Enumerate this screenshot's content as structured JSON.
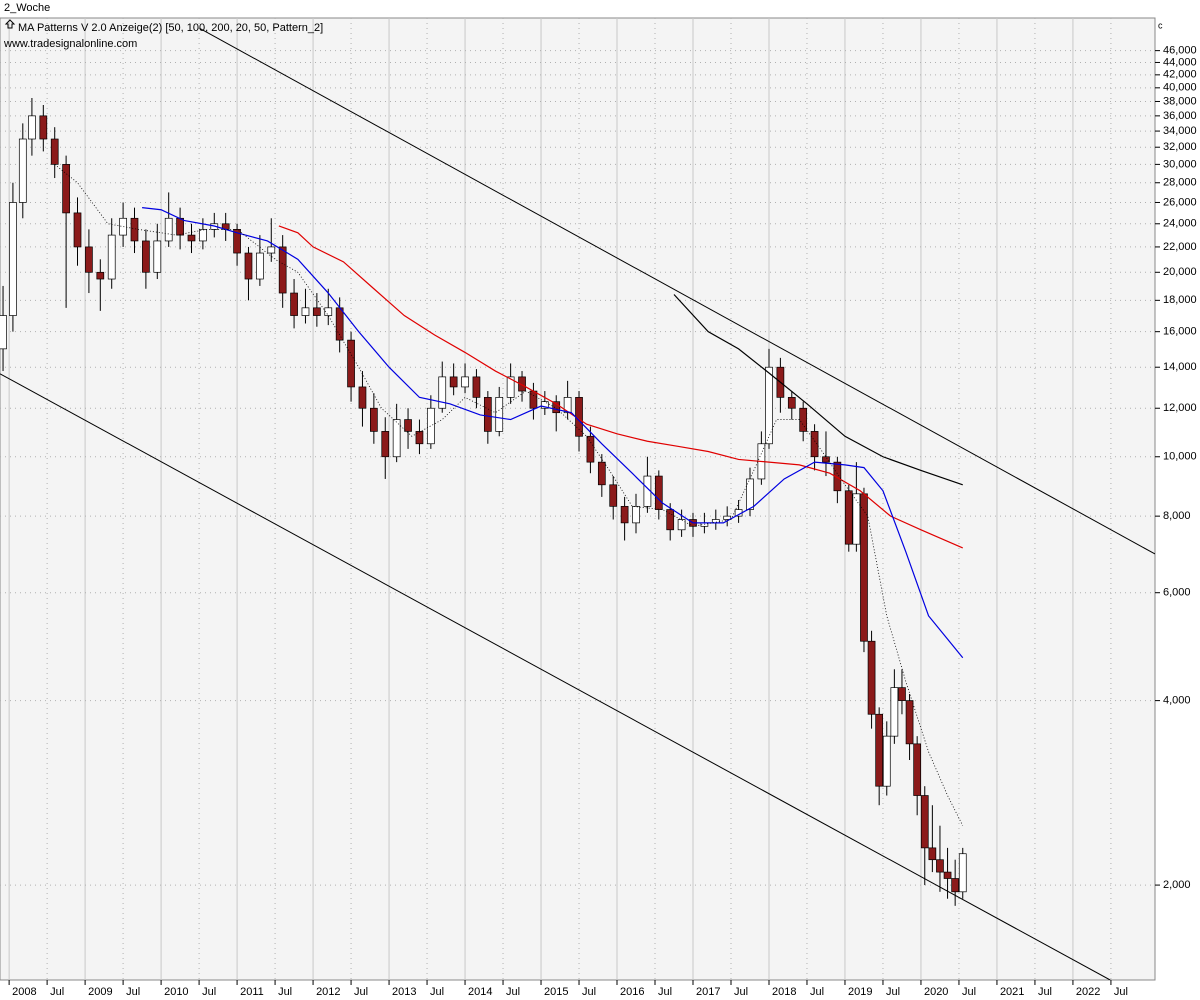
{
  "chart_data": {
    "type": "candlestick",
    "title": "2_Woche",
    "subtitle": "MA Patterns V 2.0 Anzeige(2)  [50, 100, 200, 20, 50, Pattern_2]",
    "source": "www.tradesignalonline.com",
    "axis_label": "c",
    "log_scale": true,
    "grid": true,
    "xlim": [
      2007.88,
      2023.08
    ],
    "ylim": [
      1400,
      52000
    ],
    "xticks": [
      2008,
      {
        "value": 2008.5,
        "label": "Jul"
      },
      2009,
      {
        "value": 2009.5,
        "label": "Jul"
      },
      2010,
      {
        "value": 2010.5,
        "label": "Jul"
      },
      2011,
      {
        "value": 2011.5,
        "label": "Jul"
      },
      2012,
      {
        "value": 2012.5,
        "label": "Jul"
      },
      2013,
      {
        "value": 2013.5,
        "label": "Jul"
      },
      2014,
      {
        "value": 2014.5,
        "label": "Jul"
      },
      2015,
      {
        "value": 2015.5,
        "label": "Jul"
      },
      2016,
      {
        "value": 2016.5,
        "label": "Jul"
      },
      2017,
      {
        "value": 2017.5,
        "label": "Jul"
      },
      2018,
      {
        "value": 2018.5,
        "label": "Jul"
      },
      2019,
      {
        "value": 2019.5,
        "label": "Jul"
      },
      2020,
      {
        "value": 2020.5,
        "label": "Jul"
      },
      2021,
      {
        "value": 2021.5,
        "label": "Jul"
      },
      2022,
      {
        "value": 2022.5,
        "label": "Jul"
      }
    ],
    "yticks": [
      {
        "value": 2000,
        "label": "2,000"
      },
      {
        "value": 4000,
        "label": "4,000"
      },
      {
        "value": 6000,
        "label": "6,000"
      },
      {
        "value": 8000,
        "label": "8,000"
      },
      {
        "value": 10000,
        "label": "10,000"
      },
      {
        "value": 12000,
        "label": "12,000"
      },
      {
        "value": 14000,
        "label": "14,000"
      },
      {
        "value": 16000,
        "label": "16,000"
      },
      {
        "value": 18000,
        "label": "18,000"
      },
      {
        "value": 20000,
        "label": "20,000"
      },
      {
        "value": 22000,
        "label": "22,000"
      },
      {
        "value": 24000,
        "label": "24,000"
      },
      {
        "value": 26000,
        "label": "26,000"
      },
      {
        "value": 28000,
        "label": "28,000"
      },
      {
        "value": 30000,
        "label": "30,000"
      },
      {
        "value": 32000,
        "label": "32,000"
      },
      {
        "value": 34000,
        "label": "34,000"
      },
      {
        "value": 36000,
        "label": "36,000"
      },
      {
        "value": 38000,
        "label": "38,000"
      },
      {
        "value": 40000,
        "label": "40,000"
      },
      {
        "value": 42000,
        "label": "42,000"
      },
      {
        "value": 44000,
        "label": "44,000"
      },
      {
        "value": 46000,
        "label": "46,000"
      }
    ],
    "candles": {
      "up_color": "#ffffff",
      "down_color": "#8b1a1a",
      "x": [
        2007.92,
        2008.05,
        2008.18,
        2008.3,
        2008.45,
        2008.6,
        2008.75,
        2008.9,
        2009.05,
        2009.2,
        2009.35,
        2009.5,
        2009.65,
        2009.8,
        2009.95,
        2010.1,
        2010.25,
        2010.4,
        2010.55,
        2010.7,
        2010.85,
        2011.0,
        2011.15,
        2011.3,
        2011.45,
        2011.6,
        2011.75,
        2011.9,
        2012.05,
        2012.2,
        2012.35,
        2012.5,
        2012.65,
        2012.8,
        2012.95,
        2013.1,
        2013.25,
        2013.4,
        2013.55,
        2013.7,
        2013.85,
        2014.0,
        2014.15,
        2014.3,
        2014.45,
        2014.6,
        2014.75,
        2014.9,
        2015.05,
        2015.2,
        2015.35,
        2015.5,
        2015.65,
        2015.8,
        2015.95,
        2016.1,
        2016.25,
        2016.4,
        2016.55,
        2016.7,
        2016.85,
        2017.0,
        2017.15,
        2017.3,
        2017.45,
        2017.6,
        2017.75,
        2017.9,
        2018.0,
        2018.15,
        2018.3,
        2018.45,
        2018.6,
        2018.75,
        2018.9,
        2019.05,
        2019.15,
        2019.25,
        2019.35,
        2019.45,
        2019.55,
        2019.65,
        2019.75,
        2019.85,
        2019.95,
        2020.05,
        2020.15,
        2020.25,
        2020.35,
        2020.45,
        2020.55
      ],
      "open": [
        15000,
        17000,
        26000,
        33000,
        36000,
        33000,
        30000,
        25000,
        22000,
        20000,
        19500,
        23000,
        24500,
        22500,
        20000,
        22500,
        24500,
        23000,
        22500,
        23500,
        24000,
        23500,
        21500,
        19500,
        21500,
        22000,
        18500,
        17000,
        17500,
        17000,
        17500,
        15500,
        13000,
        12000,
        11000,
        10000,
        11500,
        11000,
        10500,
        12000,
        13500,
        13000,
        13500,
        12500,
        11000,
        12500,
        13500,
        12800,
        12000,
        12300,
        11800,
        12500,
        10800,
        9800,
        9000,
        8300,
        7800,
        8300,
        9300,
        8200,
        7600,
        7900,
        7700,
        7800,
        7900,
        8000,
        8200,
        9200,
        10500,
        14000,
        12500,
        12000,
        11000,
        10000,
        9800,
        8800,
        7200,
        8700,
        5000,
        3800,
        2900,
        3500,
        4200,
        4000,
        3400,
        2800,
        2300,
        2200,
        2100,
        2050,
        1950
      ],
      "high": [
        19000,
        28000,
        35000,
        38500,
        37500,
        34500,
        31000,
        26500,
        23500,
        21000,
        24500,
        26000,
        25500,
        23500,
        24000,
        27000,
        25500,
        24000,
        24500,
        25000,
        25000,
        24000,
        22000,
        23000,
        24500,
        23000,
        19500,
        18800,
        18500,
        18800,
        18200,
        16000,
        13800,
        12700,
        11600,
        12200,
        12000,
        11500,
        12600,
        14300,
        14200,
        14200,
        13900,
        12800,
        13000,
        14200,
        13800,
        13200,
        12800,
        12600,
        13300,
        12800,
        11200,
        10100,
        9300,
        8600,
        8700,
        10000,
        9500,
        8400,
        8200,
        8100,
        8100,
        8200,
        8300,
        8500,
        9600,
        11000,
        15000,
        14500,
        12800,
        12300,
        11300,
        11000,
        10000,
        9000,
        9800,
        8900,
        5200,
        3900,
        3700,
        4500,
        4500,
        4100,
        3500,
        2900,
        2700,
        2500,
        2300,
        2200,
        2300
      ],
      "low": [
        13800,
        16000,
        24500,
        31000,
        31500,
        28500,
        17500,
        20500,
        18500,
        17300,
        18800,
        22000,
        21500,
        18800,
        19500,
        22000,
        21800,
        21500,
        21800,
        22800,
        22500,
        20500,
        18000,
        19000,
        20800,
        17500,
        16200,
        16500,
        16300,
        16400,
        14800,
        12300,
        11200,
        10500,
        9200,
        9800,
        10300,
        10100,
        10300,
        11800,
        12600,
        12700,
        12000,
        10500,
        10800,
        12200,
        12300,
        11500,
        11700,
        11000,
        11500,
        10200,
        9400,
        8600,
        7900,
        7300,
        7500,
        8100,
        7900,
        7300,
        7400,
        7400,
        7500,
        7600,
        7700,
        7800,
        8000,
        9000,
        10300,
        11800,
        11500,
        10600,
        9500,
        9300,
        8400,
        7000,
        7000,
        4800,
        3600,
        2700,
        2800,
        3400,
        3800,
        3200,
        2600,
        2000,
        2100,
        1950,
        1900,
        1850,
        1900
      ],
      "close": [
        17000,
        26000,
        33000,
        36000,
        33000,
        30000,
        25000,
        22000,
        20000,
        19500,
        23000,
        24500,
        22500,
        20000,
        22500,
        24500,
        23000,
        22500,
        23500,
        24000,
        23500,
        21500,
        19500,
        21500,
        22000,
        18500,
        17000,
        17500,
        17000,
        17500,
        15500,
        13000,
        12000,
        11000,
        10000,
        11500,
        11000,
        10500,
        12000,
        13500,
        13000,
        13500,
        12500,
        11000,
        12500,
        13500,
        12800,
        12000,
        12300,
        11800,
        12500,
        10800,
        9800,
        9000,
        8300,
        7800,
        8300,
        9300,
        8200,
        7600,
        7900,
        7700,
        7800,
        7900,
        8000,
        8200,
        9200,
        10500,
        14000,
        12500,
        12000,
        11000,
        10000,
        9800,
        8800,
        7200,
        8700,
        5000,
        3800,
        2900,
        3500,
        4200,
        4000,
        3400,
        2800,
        2300,
        2200,
        2100,
        2050,
        1950,
        2250
      ]
    },
    "series": [
      {
        "color": "#e00000",
        "style": "solid",
        "x": [
          2011.55,
          2011.8,
          2012.0,
          2012.4,
          2012.8,
          2013.2,
          2013.6,
          2014.0,
          2014.4,
          2014.8,
          2015.2,
          2015.6,
          2016.0,
          2016.4,
          2016.8,
          2017.2,
          2017.6,
          2018.0,
          2018.4,
          2018.8,
          2019.2,
          2019.6,
          2020.0,
          2020.55
        ],
        "values": [
          23800,
          23200,
          22000,
          20800,
          18800,
          17000,
          15800,
          14800,
          13800,
          13000,
          12200,
          11300,
          10900,
          10600,
          10400,
          10200,
          9900,
          9800,
          9700,
          9400,
          8800,
          8000,
          7600,
          7100
        ]
      },
      {
        "color": "#0000e0",
        "style": "solid",
        "x": [
          2009.75,
          2010.0,
          2010.3,
          2010.7,
          2011.0,
          2011.4,
          2011.8,
          2012.2,
          2012.6,
          2013.0,
          2013.4,
          2013.8,
          2014.2,
          2014.6,
          2015.0,
          2015.4,
          2015.8,
          2016.2,
          2016.6,
          2017.0,
          2017.4,
          2017.8,
          2018.2,
          2018.6,
          2019.0,
          2019.25,
          2019.5,
          2019.8,
          2020.1,
          2020.55
        ],
        "values": [
          25500,
          25300,
          24300,
          23800,
          23200,
          22500,
          21000,
          18500,
          16000,
          14000,
          12500,
          12200,
          11700,
          11500,
          12100,
          11800,
          10500,
          9400,
          8400,
          7800,
          7800,
          8300,
          9200,
          9800,
          9700,
          9600,
          8800,
          7000,
          5500,
          4700
        ]
      },
      {
        "color": "#000000",
        "style": "solid",
        "x": [
          2016.75,
          2017.2,
          2017.6,
          2018.0,
          2018.5,
          2019.0,
          2019.5,
          2020.0,
          2020.55
        ],
        "values": [
          18400,
          16000,
          15000,
          13700,
          12200,
          10800,
          10000,
          9500,
          9000
        ]
      },
      {
        "color": "#000000",
        "style": "dotted",
        "x": [
          2008.6,
          2008.9,
          2009.3,
          2009.7,
          2010.2,
          2010.6,
          2011.0,
          2011.5,
          2011.8,
          2012.2,
          2012.6,
          2012.9,
          2013.3,
          2013.7,
          2014.0,
          2014.4,
          2014.8,
          2015.2,
          2015.6,
          2015.9,
          2016.2,
          2016.6,
          2017.0,
          2017.5,
          2017.8,
          2018.1,
          2018.4,
          2018.7,
          2019.0,
          2019.3,
          2019.55,
          2019.8,
          2020.1,
          2020.35,
          2020.55
        ],
        "values": [
          30000,
          28000,
          24000,
          23500,
          23000,
          23500,
          23500,
          21000,
          20000,
          17000,
          14000,
          12000,
          10800,
          11500,
          12500,
          11800,
          12800,
          12000,
          10800,
          9500,
          8300,
          8200,
          7700,
          7900,
          9500,
          11500,
          11500,
          10200,
          9000,
          8000,
          5500,
          4300,
          3300,
          2800,
          2500
        ]
      }
    ],
    "trend_lines": [
      {
        "color": "#000000",
        "x": [
          2010.51,
          2023.08
        ],
        "values": [
          50000,
          6940
        ]
      },
      {
        "color": "#000000",
        "x": [
          2007.88,
          2022.49
        ],
        "values": [
          13660,
          1400
        ]
      }
    ]
  }
}
